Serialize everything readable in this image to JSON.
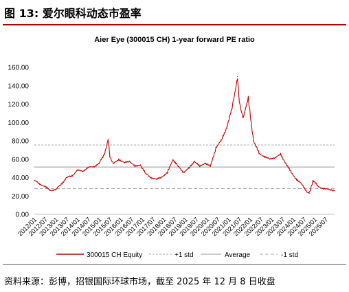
{
  "figure": {
    "title": "图 13: 爱尔眼科动态市盈率",
    "source": "资料来源：彭博，招银国际环球市场，截至 2025 年 12 月 8 日收盘"
  },
  "colors": {
    "line": "#c00000",
    "plus_std": "#aaaaaa",
    "average": "#999999",
    "minus_std": "#aaaaaa",
    "accent_rule": "#b00000"
  },
  "chart_data": {
    "type": "line",
    "title": "Aier Eye (300015 CH) 1-year forward PE ratio",
    "xlabel": "",
    "ylabel": "",
    "ylim": [
      0,
      160
    ],
    "yticks": [
      "0.00",
      "20.00",
      "40.00",
      "60.00",
      "80.00",
      "100.00",
      "120.00",
      "140.00",
      "160.00"
    ],
    "xticks": [
      "2012/01",
      "2012/07",
      "2013/01",
      "2013/07",
      "2014/01",
      "2014/07",
      "2015/01",
      "2015/07",
      "2016/01",
      "2016/07",
      "2017/01",
      "2017/07",
      "2018/01",
      "2018/07",
      "2019/01",
      "2019/07",
      "2020/01",
      "2020/07",
      "2021/01",
      "2021/07",
      "2022/01",
      "2022/07",
      "2023/01",
      "2023/07",
      "2024/01",
      "2024/07",
      "2025/01",
      "2025/07"
    ],
    "grid": false,
    "legend_position": "bottom",
    "reference_lines": [
      {
        "name": "+1 std",
        "value": 75.5,
        "style": "dashed"
      },
      {
        "name": "Average",
        "value": 51.5,
        "style": "solid"
      },
      {
        "name": "-1 std",
        "value": 28.0,
        "style": "dashed"
      }
    ],
    "series": [
      {
        "name": "300015 CH Equity",
        "x": [
          "2012/01",
          "2012/04",
          "2012/07",
          "2012/10",
          "2013/01",
          "2013/04",
          "2013/07",
          "2013/10",
          "2014/01",
          "2014/04",
          "2014/07",
          "2014/10",
          "2015/01",
          "2015/04",
          "2015/06",
          "2015/07",
          "2015/09",
          "2015/12",
          "2016/03",
          "2016/06",
          "2016/09",
          "2016/12",
          "2017/03",
          "2017/06",
          "2017/09",
          "2017/12",
          "2018/03",
          "2018/06",
          "2018/09",
          "2018/12",
          "2019/03",
          "2019/06",
          "2019/09",
          "2019/12",
          "2020/03",
          "2020/06",
          "2020/09",
          "2020/12",
          "2021/03",
          "2021/06",
          "2021/07",
          "2021/09",
          "2021/12",
          "2022/03",
          "2022/06",
          "2022/09",
          "2022/12",
          "2023/03",
          "2023/06",
          "2023/09",
          "2023/12",
          "2024/03",
          "2024/06",
          "2024/09",
          "2024/10",
          "2024/12",
          "2025/03",
          "2025/06",
          "2025/09",
          "2025/12"
        ],
        "values": [
          37,
          33,
          30,
          26,
          27,
          33,
          40,
          42,
          48,
          47,
          51,
          52,
          55,
          66,
          82,
          63,
          55,
          60,
          56,
          58,
          52,
          54,
          44,
          40,
          38,
          41,
          45,
          60,
          52,
          46,
          50,
          58,
          52,
          56,
          52,
          73,
          80,
          95,
          115,
          150,
          122,
          105,
          125,
          80,
          66,
          63,
          60,
          62,
          65,
          55,
          45,
          38,
          32,
          24,
          23,
          37,
          30,
          28,
          27,
          26
        ]
      }
    ]
  },
  "legend": {
    "series": "300015 CH Equity",
    "plus_std": "+1 std",
    "average": "Average",
    "minus_std": "-1 std"
  }
}
